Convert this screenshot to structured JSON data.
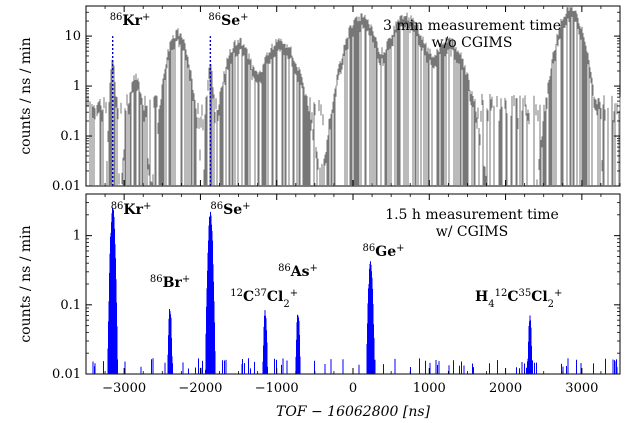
{
  "chart_data": [
    {
      "type": "line",
      "scale": "log",
      "annotation": "3 min measurement time\nw/o CGIMS",
      "ylabel": "counts / ns / min",
      "xlim": [
        -3500,
        3500
      ],
      "ylim": [
        0.01,
        40
      ],
      "yticks": [
        "0.01",
        "0.1",
        "1",
        "10"
      ],
      "ytick_values": [
        0.01,
        0.1,
        1,
        10
      ],
      "trace_color": "#777777",
      "marker_color": "#0000cc",
      "noise_floor": 0.5,
      "peaks": [
        {
          "x": -3150,
          "y": 3.0,
          "w": 25
        },
        {
          "x": -2850,
          "y": 1.5,
          "w": 60
        },
        {
          "x": -2300,
          "y": 12.0,
          "w": 90
        },
        {
          "x": -1870,
          "y": 2.5,
          "w": 25
        },
        {
          "x": -1500,
          "y": 8.0,
          "w": 110
        },
        {
          "x": -950,
          "y": 8.0,
          "w": 150
        },
        {
          "x": 100,
          "y": 25.0,
          "w": 130
        },
        {
          "x": 700,
          "y": 25.0,
          "w": 150
        },
        {
          "x": 1250,
          "y": 8.0,
          "w": 140
        },
        {
          "x": 2850,
          "y": 35.0,
          "w": 110
        }
      ],
      "markers": [
        {
          "x": -3150,
          "y": 10
        },
        {
          "x": -1870,
          "y": 10
        }
      ],
      "labels": [
        {
          "text": "Kr",
          "mass": "86",
          "x": -3150
        },
        {
          "text": "Se",
          "mass": "86",
          "x": -1870
        }
      ]
    },
    {
      "type": "line",
      "scale": "log",
      "annotation": "1.5 h measurement time\nw/ CGIMS",
      "ylabel": "counts / ns / min",
      "xlabel": "TOF − 16062800 [ns]",
      "xlim": [
        -3500,
        3500
      ],
      "ylim": [
        0.01,
        4
      ],
      "xticks": [
        "−3000",
        "−2000",
        "−1000",
        "0",
        "1000",
        "2000",
        "3000"
      ],
      "xtick_values": [
        -3000,
        -2000,
        -1000,
        0,
        1000,
        2000,
        3000
      ],
      "yticks": [
        "0.01",
        "0.1",
        "1"
      ],
      "ytick_values": [
        0.01,
        0.1,
        1
      ],
      "trace_color": "#0000ff",
      "peaks": [
        {
          "x": -3150,
          "y": 2.4,
          "w": 20
        },
        {
          "x": -2400,
          "y": 0.09,
          "w": 15
        },
        {
          "x": -1870,
          "y": 2.0,
          "w": 20
        },
        {
          "x": -1150,
          "y": 0.08,
          "w": 15
        },
        {
          "x": -720,
          "y": 0.08,
          "w": 15
        },
        {
          "x": 230,
          "y": 0.38,
          "w": 20
        },
        {
          "x": 2320,
          "y": 0.07,
          "w": 15
        }
      ],
      "labels": [
        {
          "text": "Kr",
          "mass": "86",
          "x": -3150
        },
        {
          "text": "Br",
          "mass": "86",
          "x": -2400
        },
        {
          "text": "Se",
          "mass": "86",
          "x": -1870
        },
        {
          "text": "C",
          "mass": "12",
          "text2": "Cl",
          "mass2": "37",
          "sub": "2",
          "x": -1150
        },
        {
          "text": "As",
          "mass": "86",
          "x": -720
        },
        {
          "text": "Ge",
          "mass": "86",
          "x": 230
        },
        {
          "text": "H",
          "sub0": "4",
          "mass": "12",
          "text2": "C",
          "mass2": "35",
          "text3": "Cl",
          "sub": "2",
          "x": 2320
        }
      ]
    }
  ]
}
